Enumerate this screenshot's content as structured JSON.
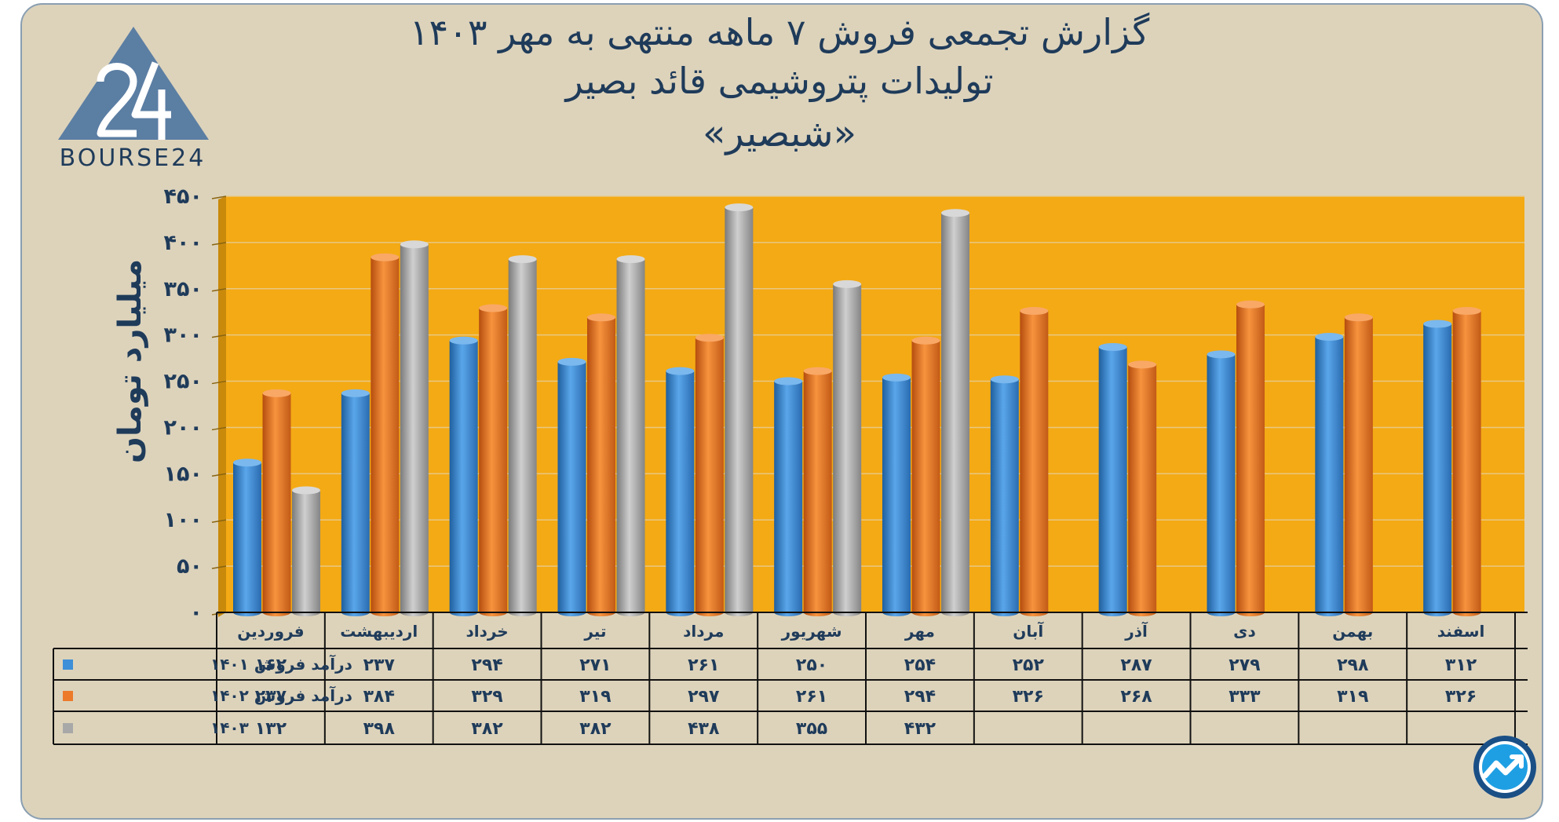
{
  "header": {
    "title_line1": "گزارش تجمعی فروش ۷ ماهه منتهی به مهر ۱۴۰۳",
    "title_line2": "تولیدات پتروشیمی قائد بصیر",
    "title_line3": "«شبصیر»"
  },
  "logo": {
    "text": "BOURSE24",
    "icon": "bourse24-logo"
  },
  "badge": {
    "icon": "trend-arrow-badge-icon"
  },
  "colors": {
    "s1401": "#3d8fd8",
    "s1402": "#ec7a2a",
    "s1403": "#a8a8a8",
    "plot_bg": "#f4aa14",
    "frame_bg": "#ddd3bb",
    "text": "#1f3b5a"
  },
  "chart_data": {
    "type": "bar",
    "ylabel": "میلیارد تومان",
    "ylim": [
      0,
      450
    ],
    "yticks": [
      0,
      50,
      100,
      150,
      200,
      250,
      300,
      350,
      400,
      450
    ],
    "ytick_labels": [
      "۰",
      "۵۰",
      "۱۰۰",
      "۱۵۰",
      "۲۰۰",
      "۲۵۰",
      "۳۰۰",
      "۳۵۰",
      "۴۰۰",
      "۴۵۰"
    ],
    "categories": [
      "فروردین",
      "اردیبهشت",
      "خرداد",
      "تیر",
      "مرداد",
      "شهریور",
      "مهر",
      "آبان",
      "آذر",
      "دی",
      "بهمن",
      "اسفند"
    ],
    "series": [
      {
        "name": "درآمد فروش ۱۴۰۱",
        "color_key": "s1401",
        "values": [
          162,
          237,
          294,
          271,
          261,
          250,
          254,
          252,
          287,
          279,
          298,
          312
        ],
        "labels": [
          "۱۶۲",
          "۲۳۷",
          "۲۹۴",
          "۲۷۱",
          "۲۶۱",
          "۲۵۰",
          "۲۵۴",
          "۲۵۲",
          "۲۸۷",
          "۲۷۹",
          "۲۹۸",
          "۳۱۲"
        ]
      },
      {
        "name": "درآمد فروش ۱۴۰۲",
        "color_key": "s1402",
        "values": [
          237,
          384,
          329,
          319,
          297,
          261,
          294,
          326,
          268,
          333,
          319,
          326
        ],
        "labels": [
          "۲۳۷",
          "۳۸۴",
          "۳۲۹",
          "۳۱۹",
          "۲۹۷",
          "۲۶۱",
          "۲۹۴",
          "۳۲۶",
          "۲۶۸",
          "۳۳۳",
          "۳۱۹",
          "۳۲۶"
        ]
      },
      {
        "name": "۱۴۰۳",
        "color_key": "s1403",
        "values": [
          132,
          398,
          382,
          382,
          438,
          355,
          432,
          null,
          null,
          null,
          null,
          null
        ],
        "labels": [
          "۱۳۲",
          "۳۹۸",
          "۳۸۲",
          "۳۸۲",
          "۴۳۸",
          "۳۵۵",
          "۴۳۲",
          "",
          "",
          "",
          "",
          ""
        ]
      }
    ]
  }
}
